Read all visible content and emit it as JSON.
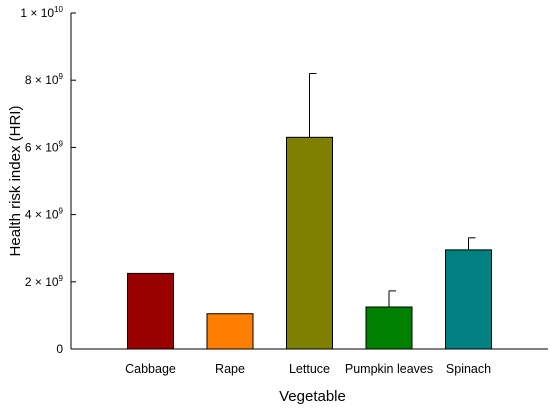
{
  "chart_data": {
    "type": "bar",
    "title": "",
    "xlabel": "Vegetable",
    "ylabel": "Health risk index (HRI)",
    "categories": [
      "Cabbage",
      "Rape",
      "Lettuce",
      "Pumpkin leaves",
      "Spinach"
    ],
    "values": [
      2250000000,
      1050000000,
      6300000000,
      1250000000,
      2950000000
    ],
    "errors": [
      0,
      0,
      1900000000,
      480000000,
      360000000
    ],
    "colors": [
      "#990000",
      "#ff8000",
      "#808000",
      "#008000",
      "#008080"
    ],
    "ylim": [
      0,
      10000000000
    ],
    "yticks": [
      {
        "value": 0,
        "base": "0",
        "exp": ""
      },
      {
        "value": 2000000000,
        "base": "2 × 10",
        "exp": "9"
      },
      {
        "value": 4000000000,
        "base": "4 × 10",
        "exp": "9"
      },
      {
        "value": 6000000000,
        "base": "6 × 10",
        "exp": "9"
      },
      {
        "value": 8000000000,
        "base": "8 × 10",
        "exp": "9"
      },
      {
        "value": 10000000000,
        "base": "1 × 10",
        "exp": "10"
      }
    ],
    "grid": false,
    "legend": "none"
  }
}
